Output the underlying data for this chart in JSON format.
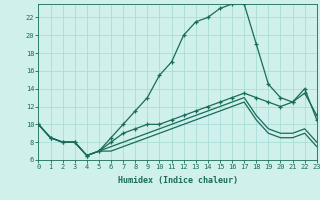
{
  "xlabel": "Humidex (Indice chaleur)",
  "bg_color": "#cff0eb",
  "grid_color": "#aaddd8",
  "line_color": "#1a6b5a",
  "x_ticks": [
    0,
    1,
    2,
    3,
    4,
    5,
    6,
    7,
    8,
    9,
    10,
    11,
    12,
    13,
    14,
    15,
    16,
    17,
    18,
    19,
    20,
    21,
    22,
    23
  ],
  "y_ticks": [
    6,
    8,
    10,
    12,
    14,
    16,
    18,
    20,
    22
  ],
  "xlim": [
    0,
    23
  ],
  "ylim": [
    6,
    23.5
  ],
  "series": {
    "curve_main": [
      10,
      8.5,
      8,
      8,
      6.5,
      7,
      8.5,
      10,
      11.5,
      13,
      15.5,
      17,
      20,
      21.5,
      22,
      23,
      23.5,
      23.5,
      19,
      14.5,
      13.0,
      12.5,
      13.5,
      11
    ],
    "curve2": [
      10,
      8.5,
      8,
      8,
      6.5,
      7,
      8,
      9,
      9.5,
      10,
      10,
      10.5,
      11,
      11.5,
      12,
      12.5,
      13,
      13.5,
      13,
      12.5,
      12,
      12.5,
      14,
      10.5
    ],
    "line3": [
      10,
      8.5,
      8,
      8,
      6.5,
      7,
      7.5,
      8,
      8.5,
      9,
      9.5,
      10,
      10.5,
      11,
      11.5,
      12,
      12.5,
      13,
      11,
      9.5,
      9,
      9,
      9.5,
      8
    ],
    "line4": [
      10,
      8.5,
      8,
      8,
      6.5,
      7,
      7,
      7.5,
      8,
      8.5,
      9,
      9.5,
      10,
      10.5,
      11,
      11.5,
      12,
      12.5,
      10.5,
      9,
      8.5,
      8.5,
      9,
      7.5
    ]
  }
}
